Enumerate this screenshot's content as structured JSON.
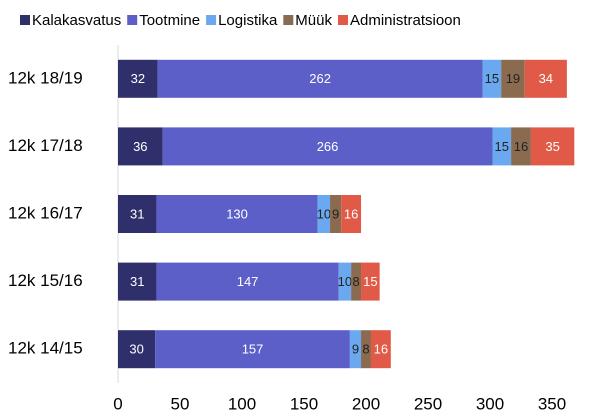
{
  "chart_data": {
    "type": "stacked_barh",
    "categories": [
      "12k 18/19",
      "12k 17/18",
      "12k 16/17",
      "12k 15/16",
      "12k 14/15"
    ],
    "series": [
      {
        "name": "Kalakasvatus",
        "color": "#2e2f6b",
        "values": [
          32,
          36,
          31,
          31,
          30
        ]
      },
      {
        "name": "Tootmine",
        "color": "#5b5fc7",
        "values": [
          262,
          266,
          130,
          147,
          157
        ]
      },
      {
        "name": "Logistika",
        "color": "#6aa8f0",
        "values": [
          15,
          15,
          10,
          10,
          9
        ]
      },
      {
        "name": "Müük",
        "color": "#8b6b4f",
        "values": [
          19,
          16,
          9,
          8,
          8
        ]
      },
      {
        "name": "Administratsioon",
        "color": "#e05a47",
        "values": [
          34,
          35,
          16,
          15,
          16
        ]
      }
    ],
    "xlim": [
      0,
      375
    ],
    "xticks": [
      0,
      50,
      100,
      150,
      200,
      250,
      300,
      350
    ],
    "legend": "top",
    "grid": false
  }
}
